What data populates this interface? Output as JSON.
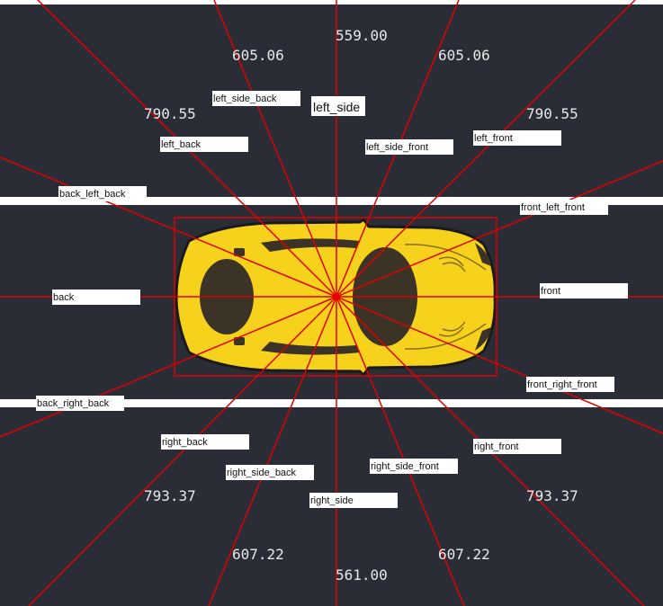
{
  "colors": {
    "background": "#2a2d36",
    "lane_marking": "#ffffff",
    "ray": "#e00000",
    "box": "#e00000",
    "car_body": "#f7d21d",
    "car_glass": "#3b3426",
    "label_bg": "#ffffff"
  },
  "direction_labels": {
    "left_side": "left_side",
    "left_side_back": "left_side_back",
    "left_back": "left_back",
    "left_side_front": "left_side_front",
    "left_front": "left_front",
    "back_left_back": "back_left_back",
    "front_left_front": "front_left_front",
    "back": "back",
    "front": "front",
    "back_right_back": "back_right_back",
    "front_right_front": "front_right_front",
    "right_back": "right_back",
    "right_front": "right_front",
    "right_side_back": "right_side_back",
    "right_side_front": "right_side_front",
    "right_side": "right_side"
  },
  "distances": {
    "top_center": "559.00",
    "top_inner_left": "605.06",
    "top_inner_right": "605.06",
    "top_outer_left": "790.55",
    "top_outer_right": "790.55",
    "bottom_outer_left": "793.37",
    "bottom_outer_right": "793.37",
    "bottom_inner_left": "607.22",
    "bottom_inner_right": "607.22",
    "bottom_center": "561.00"
  }
}
